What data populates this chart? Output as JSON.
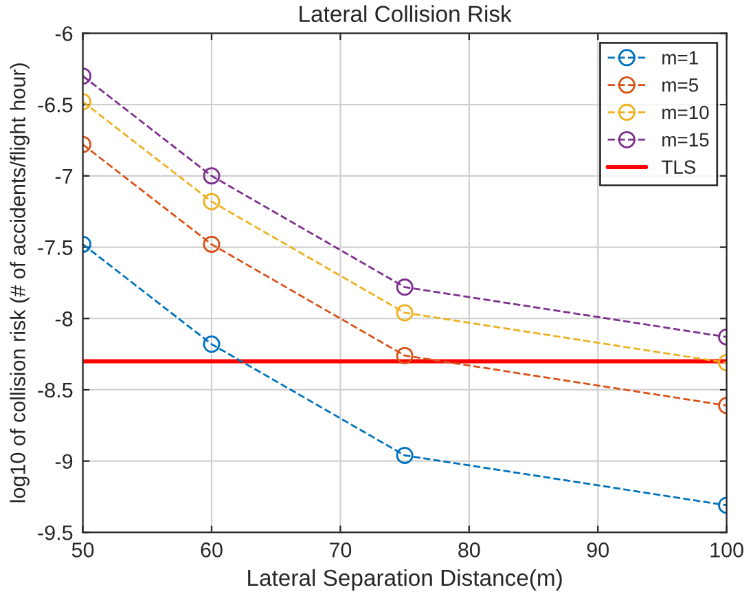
{
  "chart_data": {
    "type": "line",
    "title": "Lateral Collision Risk",
    "xlabel": "Lateral Separation Distance(m)",
    "ylabel": "log10 of collision risk (# of accidents/flight hour)",
    "x": [
      50,
      60,
      75,
      100
    ],
    "series": [
      {
        "name": "m=1",
        "color": "#0072bd",
        "values": [
          -7.48,
          -8.18,
          -8.96,
          -9.31
        ]
      },
      {
        "name": "m=5",
        "color": "#d95319",
        "values": [
          -6.78,
          -7.48,
          -8.26,
          -8.61
        ]
      },
      {
        "name": "m=10",
        "color": "#edb120",
        "values": [
          -6.48,
          -7.18,
          -7.96,
          -8.31
        ]
      },
      {
        "name": "m=15",
        "color": "#7e2f8e",
        "values": [
          -6.3,
          -7.0,
          -7.78,
          -8.13
        ]
      }
    ],
    "ref_lines": [
      {
        "axis": "y",
        "value": -8.3,
        "label": "TLS",
        "color": "#ff0000",
        "line_style": "solid"
      }
    ],
    "xlim": [
      50,
      100
    ],
    "xticks": [
      50,
      60,
      70,
      80,
      90,
      100
    ],
    "ylim": [
      -9.5,
      -6
    ],
    "yticks": [
      -9.5,
      -9,
      -8.5,
      -8,
      -7.5,
      -7,
      -6.5,
      -6
    ],
    "grid": true,
    "legend": "top right",
    "marker": "circle",
    "line_style": "dashed"
  }
}
